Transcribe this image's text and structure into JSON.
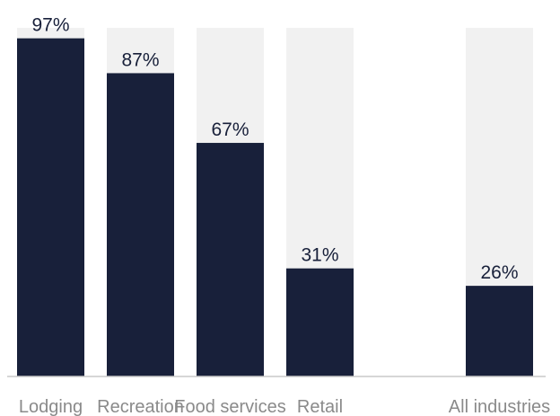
{
  "chart_data": {
    "type": "bar",
    "categories": [
      "Lodging",
      "Recreation",
      "Food services",
      "Retail",
      "",
      "All industries"
    ],
    "values": [
      97,
      87,
      67,
      31,
      null,
      26
    ],
    "value_labels": [
      "97%",
      "87%",
      "67%",
      "31%",
      "",
      "26%"
    ],
    "ylim": [
      0,
      100
    ],
    "colors": {
      "bar": "#18203a",
      "track": "#f1f1f1",
      "label": "#18203a",
      "category": "#8a8a8a"
    },
    "grid": false,
    "legend": "none"
  }
}
